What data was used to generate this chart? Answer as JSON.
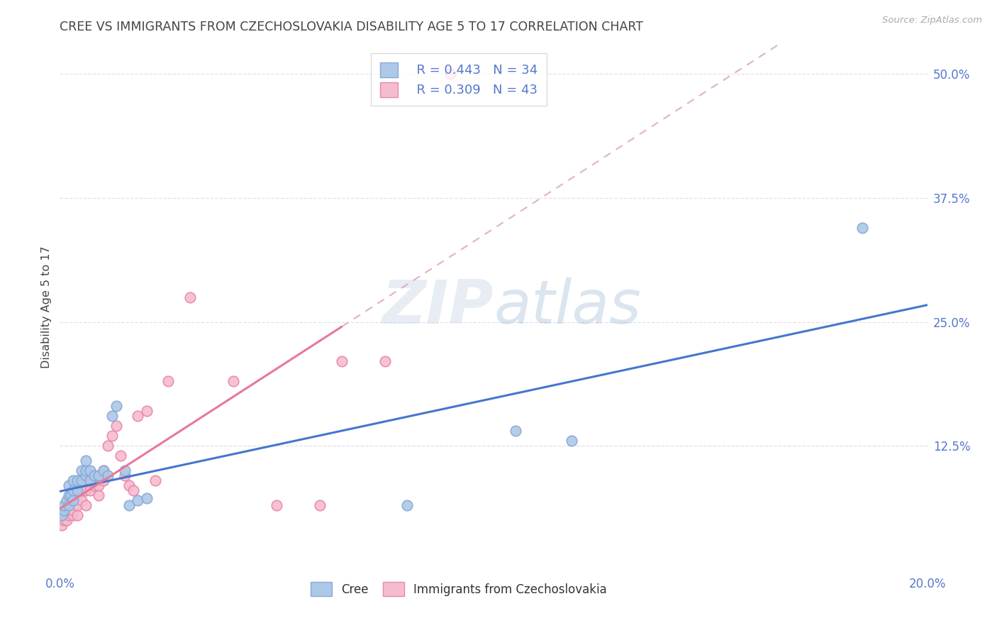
{
  "title": "CREE VS IMMIGRANTS FROM CZECHOSLOVAKIA DISABILITY AGE 5 TO 17 CORRELATION CHART",
  "source": "Source: ZipAtlas.com",
  "ylabel": "Disability Age 5 to 17",
  "xlim": [
    0.0,
    0.2
  ],
  "ylim": [
    0.0,
    0.53
  ],
  "ytick_labels": [
    "12.5%",
    "25.0%",
    "37.5%",
    "50.0%"
  ],
  "ytick_values": [
    0.125,
    0.25,
    0.375,
    0.5
  ],
  "grid_color": "#e0e0e8",
  "background_color": "#ffffff",
  "title_color": "#444444",
  "axis_label_color": "#5577cc",
  "cree_color": "#adc8e8",
  "cree_edge_color": "#88aad4",
  "immig_color": "#f5bcd0",
  "immig_edge_color": "#e888a8",
  "cree_line_color": "#4477cc",
  "immig_line_color": "#e87898",
  "immig_line_dash_color": "#d4a0b8",
  "legend_label_cree": "Cree",
  "legend_label_immig": "Immigrants from Czechoslovakia",
  "legend_R_cree": "R = 0.443",
  "legend_N_cree": "N = 34",
  "legend_R_immig": "R = 0.309",
  "legend_N_immig": "N = 43",
  "cree_x": [
    0.0005,
    0.001,
    0.001,
    0.0015,
    0.002,
    0.002,
    0.002,
    0.0025,
    0.003,
    0.003,
    0.003,
    0.004,
    0.004,
    0.005,
    0.005,
    0.006,
    0.006,
    0.006,
    0.007,
    0.007,
    0.008,
    0.009,
    0.01,
    0.011,
    0.012,
    0.013,
    0.015,
    0.016,
    0.018,
    0.02,
    0.08,
    0.105,
    0.118,
    0.185
  ],
  "cree_y": [
    0.055,
    0.06,
    0.065,
    0.07,
    0.065,
    0.075,
    0.085,
    0.075,
    0.07,
    0.08,
    0.09,
    0.08,
    0.09,
    0.09,
    0.1,
    0.095,
    0.1,
    0.11,
    0.09,
    0.1,
    0.095,
    0.095,
    0.1,
    0.095,
    0.155,
    0.165,
    0.1,
    0.065,
    0.07,
    0.072,
    0.065,
    0.14,
    0.13,
    0.345
  ],
  "immig_x": [
    0.0005,
    0.001,
    0.001,
    0.0015,
    0.002,
    0.002,
    0.003,
    0.003,
    0.003,
    0.004,
    0.004,
    0.004,
    0.005,
    0.005,
    0.005,
    0.006,
    0.006,
    0.007,
    0.007,
    0.008,
    0.008,
    0.009,
    0.009,
    0.01,
    0.01,
    0.011,
    0.012,
    0.013,
    0.014,
    0.015,
    0.016,
    0.017,
    0.018,
    0.02,
    0.022,
    0.025,
    0.03,
    0.04,
    0.05,
    0.06,
    0.065,
    0.075,
    0.09
  ],
  "immig_y": [
    0.045,
    0.05,
    0.055,
    0.05,
    0.055,
    0.06,
    0.055,
    0.06,
    0.07,
    0.055,
    0.065,
    0.075,
    0.07,
    0.08,
    0.09,
    0.065,
    0.08,
    0.08,
    0.09,
    0.085,
    0.095,
    0.075,
    0.085,
    0.09,
    0.1,
    0.125,
    0.135,
    0.145,
    0.115,
    0.095,
    0.085,
    0.08,
    0.155,
    0.16,
    0.09,
    0.19,
    0.275,
    0.19,
    0.065,
    0.065,
    0.21,
    0.21,
    0.5
  ]
}
